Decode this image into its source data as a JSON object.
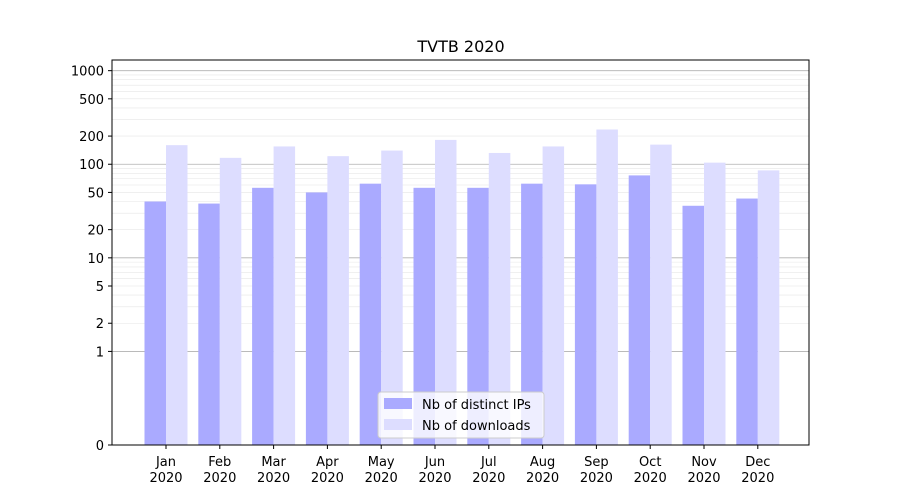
{
  "chart_data": {
    "type": "bar",
    "title": "TVTB 2020",
    "xlabel": "",
    "ylabel": "",
    "y_scale": "symlog",
    "ylim": [
      0,
      1300
    ],
    "y_ticks": [
      0,
      1,
      2,
      5,
      10,
      20,
      50,
      100,
      200,
      500,
      1000
    ],
    "categories": [
      "Jan\n2020",
      "Feb\n2020",
      "Mar\n2020",
      "Apr\n2020",
      "May\n2020",
      "Jun\n2020",
      "Jul\n2020",
      "Aug\n2020",
      "Sep\n2020",
      "Oct\n2020",
      "Nov\n2020",
      "Dec\n2020"
    ],
    "series": [
      {
        "name": "Nb of distinct IPs",
        "color": "#aaaaff",
        "values": [
          40,
          38,
          56,
          50,
          62,
          56,
          56,
          62,
          61,
          76,
          36,
          43
        ]
      },
      {
        "name": "Nb of downloads",
        "color": "#ddddff",
        "values": [
          160,
          117,
          155,
          122,
          140,
          182,
          132,
          155,
          235,
          162,
          104,
          86
        ]
      }
    ],
    "grid": true,
    "legend_position": "bottom-center"
  }
}
